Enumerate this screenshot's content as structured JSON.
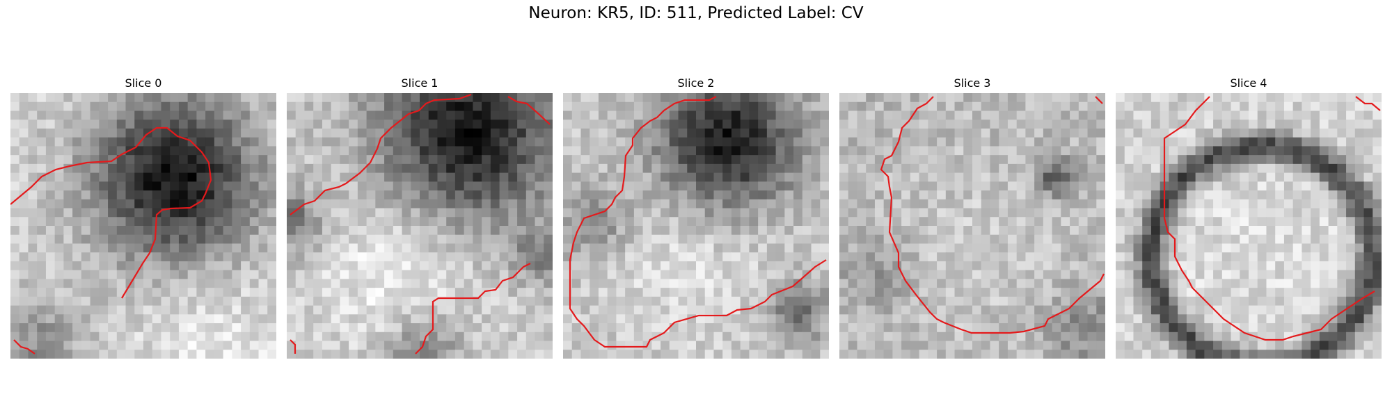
{
  "figure": {
    "title": "Neuron: KR5, ID: 511, Predicted Label: CV"
  },
  "panels": [
    {
      "title": "Slice 0",
      "texture": "dark-blob-top-right",
      "contour_color": "#e41a1c"
    },
    {
      "title": "Slice 1",
      "texture": "dark-top-bright-bottom",
      "contour_color": "#e41a1c"
    },
    {
      "title": "Slice 2",
      "texture": "dark-band-top-bright-center",
      "contour_color": "#e41a1c"
    },
    {
      "title": "Slice 3",
      "texture": "noisy-light-with-ring",
      "contour_color": "#e41a1c"
    },
    {
      "title": "Slice 4",
      "texture": "bright-ring-membrane",
      "contour_color": "#e41a1c"
    }
  ]
}
